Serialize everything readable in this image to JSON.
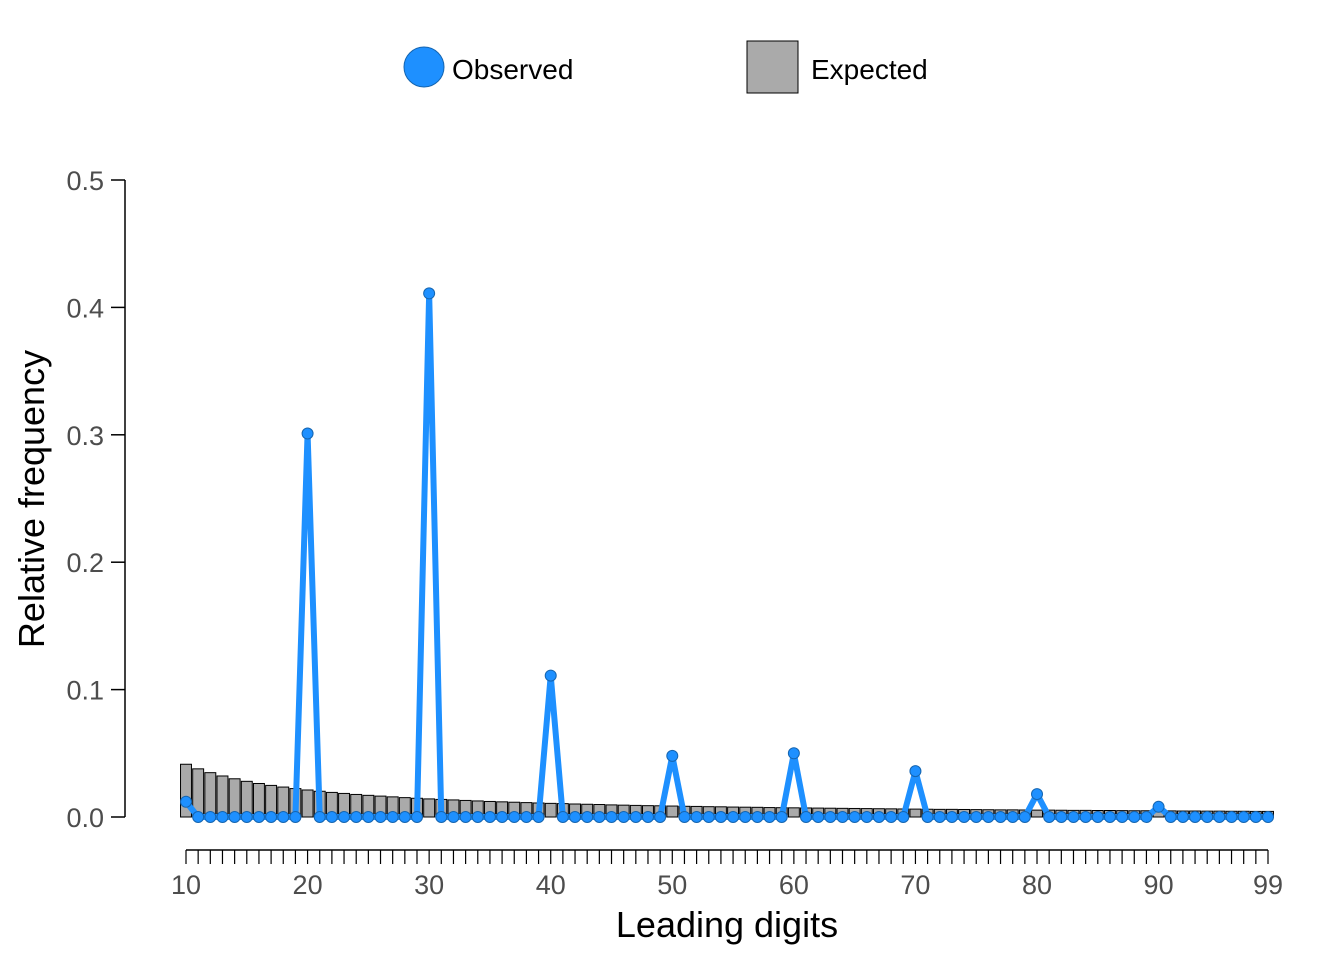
{
  "chart_data": {
    "type": "bar",
    "xlabel": "Leading digits",
    "ylabel": "Relative frequency",
    "ylim": [
      0,
      0.5
    ],
    "xlim": [
      10,
      99
    ],
    "y_ticks": [
      0.0,
      0.1,
      0.2,
      0.3,
      0.4,
      0.5
    ],
    "y_tick_labels": [
      "0.0",
      "0.1",
      "0.2",
      "0.3",
      "0.4",
      "0.5"
    ],
    "x_tick_labels": [
      "10",
      "20",
      "30",
      "40",
      "50",
      "60",
      "70",
      "80",
      "90",
      "99"
    ],
    "x_tick_label_values": [
      10,
      20,
      30,
      40,
      50,
      60,
      70,
      80,
      90,
      99
    ],
    "legend_position": "top",
    "grid": false,
    "x": [
      10,
      11,
      12,
      13,
      14,
      15,
      16,
      17,
      18,
      19,
      20,
      21,
      22,
      23,
      24,
      25,
      26,
      27,
      28,
      29,
      30,
      31,
      32,
      33,
      34,
      35,
      36,
      37,
      38,
      39,
      40,
      41,
      42,
      43,
      44,
      45,
      46,
      47,
      48,
      49,
      50,
      51,
      52,
      53,
      54,
      55,
      56,
      57,
      58,
      59,
      60,
      61,
      62,
      63,
      64,
      65,
      66,
      67,
      68,
      69,
      70,
      71,
      72,
      73,
      74,
      75,
      76,
      77,
      78,
      79,
      80,
      81,
      82,
      83,
      84,
      85,
      86,
      87,
      88,
      89,
      90,
      91,
      92,
      93,
      94,
      95,
      96,
      97,
      98,
      99
    ],
    "series": [
      {
        "name": "Observed",
        "kind": "line",
        "color": "#1E90FF",
        "values": [
          0.012,
          0,
          0,
          0,
          0,
          0,
          0,
          0,
          0,
          0,
          0.301,
          0,
          0,
          0,
          0,
          0,
          0,
          0,
          0,
          0,
          0.411,
          0,
          0,
          0,
          0,
          0,
          0,
          0,
          0,
          0,
          0.111,
          0,
          0,
          0,
          0,
          0,
          0,
          0,
          0,
          0,
          0.048,
          0,
          0,
          0,
          0,
          0,
          0,
          0,
          0,
          0,
          0.05,
          0,
          0,
          0,
          0,
          0,
          0,
          0,
          0,
          0,
          0.036,
          0,
          0,
          0,
          0,
          0,
          0,
          0,
          0,
          0,
          0.018,
          0,
          0,
          0,
          0,
          0,
          0,
          0,
          0,
          0,
          0.008,
          0,
          0,
          0,
          0,
          0,
          0,
          0,
          0,
          0
        ]
      },
      {
        "name": "Expected",
        "kind": "bar",
        "color": "#AAAAAA",
        "values": [
          0.0414,
          0.0378,
          0.0348,
          0.0322,
          0.03,
          0.028,
          0.0263,
          0.0248,
          0.0235,
          0.0223,
          0.0212,
          0.0202,
          0.0193,
          0.0185,
          0.0177,
          0.017,
          0.0164,
          0.0158,
          0.0152,
          0.0147,
          0.0142,
          0.0138,
          0.0134,
          0.013,
          0.0126,
          0.0122,
          0.0119,
          0.0116,
          0.0113,
          0.011,
          0.0107,
          0.0105,
          0.0102,
          0.01,
          0.0098,
          0.0095,
          0.0093,
          0.0091,
          0.0089,
          0.0088,
          0.0086,
          0.0084,
          0.0083,
          0.0081,
          0.008,
          0.0078,
          0.0077,
          0.0076,
          0.0074,
          0.0073,
          0.0072,
          0.0071,
          0.007,
          0.0069,
          0.0068,
          0.0067,
          0.0066,
          0.0065,
          0.0064,
          0.0063,
          0.0062,
          0.0061,
          0.006,
          0.006,
          0.0059,
          0.0058,
          0.0057,
          0.0056,
          0.0056,
          0.0055,
          0.0054,
          0.0054,
          0.0053,
          0.0052,
          0.0052,
          0.0051,
          0.0051,
          0.005,
          0.0049,
          0.0049,
          0.0048,
          0.0048,
          0.0047,
          0.0047,
          0.0046,
          0.0046,
          0.0045,
          0.0045,
          0.0044,
          0.0044
        ]
      }
    ]
  }
}
